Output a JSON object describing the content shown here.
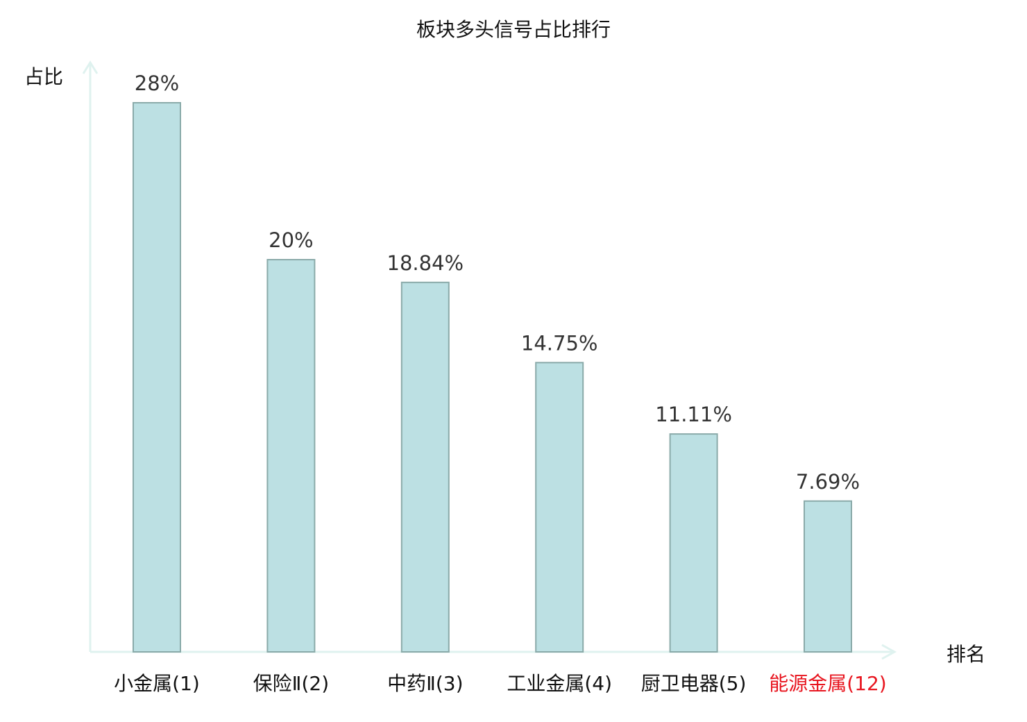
{
  "chart_data": {
    "type": "bar",
    "title": "板块多头信号占比排行",
    "xlabel": "排名",
    "ylabel": "占比",
    "categories": [
      "小金属(1)",
      "保险Ⅱ(2)",
      "中药Ⅱ(3)",
      "工业金属(4)",
      "厨卫电器(5)",
      "能源金属(12)"
    ],
    "values": [
      28,
      20,
      18.84,
      14.75,
      11.11,
      7.69
    ],
    "value_labels": [
      "28%",
      "20%",
      "18.84%",
      "14.75%",
      "11.11%",
      "7.69%"
    ],
    "highlight_index": 5,
    "ylim": [
      0,
      28
    ],
    "grid": false,
    "colors": {
      "bar_fill": "#bce0e3",
      "bar_stroke": "#8aaaa9",
      "axis": "#dff2ef",
      "label": "#111111",
      "highlight": "#e8141e"
    }
  }
}
